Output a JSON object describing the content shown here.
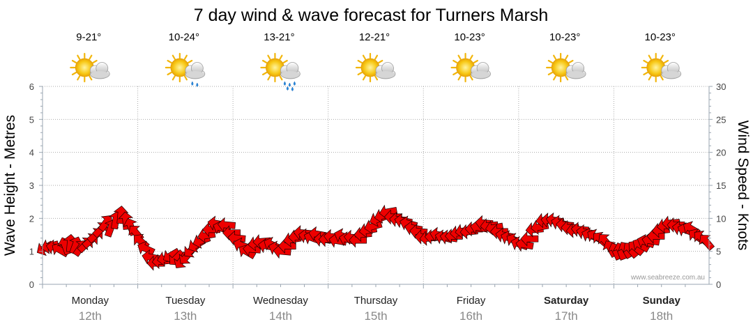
{
  "chart_data": {
    "type": "line",
    "title": "7 day wind & wave forecast for Turners Marsh",
    "ylabel_left": "Wave Height - Metres",
    "ylabel_right": "Wind Speed - Knots",
    "ylim_left": [
      0,
      6
    ],
    "ylim_right": [
      0,
      30
    ],
    "yticks_left": [
      "0",
      "1",
      "2",
      "3",
      "4",
      "5",
      "6"
    ],
    "yticks_right": [
      "0",
      "5",
      "10",
      "15",
      "20",
      "25",
      "30"
    ],
    "grid": true,
    "credit": "www.seabreeze.com.au",
    "series_color": "#ee0000",
    "days": [
      {
        "name": "Monday",
        "date": "12th",
        "temp": "9-21°",
        "weather": "partly-cloudy-icon",
        "bold": false
      },
      {
        "name": "Tuesday",
        "date": "13th",
        "temp": "10-24°",
        "weather": "showers-icon",
        "bold": false
      },
      {
        "name": "Wednesday",
        "date": "14th",
        "temp": "13-21°",
        "weather": "rain-icon",
        "bold": false
      },
      {
        "name": "Thursday",
        "date": "15th",
        "temp": "12-21°",
        "weather": "partly-cloudy-icon",
        "bold": false
      },
      {
        "name": "Friday",
        "date": "16th",
        "temp": "10-23°",
        "weather": "partly-cloudy-icon",
        "bold": false
      },
      {
        "name": "Saturday",
        "date": "17th",
        "temp": "10-23°",
        "weather": "partly-cloudy-icon",
        "bold": true
      },
      {
        "name": "Sunday",
        "date": "18th",
        "temp": "10-23°",
        "weather": "partly-cloudy-icon",
        "bold": true
      }
    ],
    "wind_knots": [
      5.5,
      5.8,
      5.6,
      5.2,
      5.8,
      6.2,
      5.9,
      5.5,
      6.0,
      6.6,
      7.4,
      8.3,
      9.3,
      8.5,
      9.7,
      10.5,
      9.6,
      8.7,
      7.8,
      6.5,
      5.4,
      4.1,
      3.2,
      3.5,
      3.9,
      4.4,
      4.0,
      3.6,
      4.2,
      5.2,
      6.0,
      6.6,
      7.4,
      8.3,
      9.2,
      8.5,
      9.0,
      7.8,
      7.0,
      5.9,
      4.9,
      5.3,
      6.2,
      6.5,
      5.8,
      6.0,
      5.4,
      5.0,
      5.8,
      6.8,
      7.2,
      7.8,
      7.3,
      7.0,
      7.6,
      6.8,
      6.8,
      7.2,
      6.6,
      7.3,
      6.8,
      7.1,
      6.7,
      7.6,
      8.2,
      8.8,
      9.9,
      10.4,
      11.0,
      10.2,
      9.8,
      9.6,
      9.2,
      8.5,
      8.0,
      7.2,
      7.0,
      7.2,
      7.5,
      7.1,
      7.1,
      7.3,
      7.8,
      8.1,
      8.0,
      8.4,
      8.6,
      9.3,
      8.9,
      8.6,
      8.0,
      7.4,
      7.0,
      6.6,
      6.1,
      6.0,
      6.9,
      8.3,
      8.7,
      9.7,
      9.7,
      9.7,
      9.3,
      9.0,
      8.6,
      8.2,
      8.3,
      7.9,
      7.4,
      7.2,
      6.8,
      6.5,
      5.4,
      5.0,
      5.0,
      5.2,
      5.2,
      5.5,
      5.9,
      6.4,
      6.6,
      7.3,
      8.2,
      8.9,
      9.3,
      9.0,
      8.5,
      8.2,
      8.4,
      7.3,
      7.0,
      6.4
    ],
    "wind_dir_deg": [
      60,
      75,
      100,
      120,
      160,
      185,
      200,
      215,
      225,
      230,
      230,
      225,
      215,
      200,
      190,
      185,
      175,
      160,
      140,
      130,
      115,
      100,
      90,
      85,
      80,
      60,
      45,
      35,
      40,
      50,
      60,
      70,
      80,
      90,
      100,
      110,
      95,
      90,
      95,
      110,
      120,
      95,
      80,
      85,
      100,
      115,
      110,
      95,
      90,
      80,
      85,
      95,
      100,
      110,
      100,
      95,
      90,
      95,
      100,
      110,
      105,
      95,
      90,
      85,
      80,
      75,
      70,
      75,
      80,
      90,
      95,
      100,
      105,
      100,
      95,
      90,
      85,
      90,
      100,
      105,
      100,
      90,
      85,
      80,
      85,
      90,
      100,
      95,
      85,
      80,
      90,
      100,
      110,
      120,
      110,
      100,
      90,
      85,
      80,
      85,
      95,
      100,
      105,
      95,
      90,
      85,
      95,
      100,
      110,
      120,
      130,
      140,
      150,
      155,
      160,
      150,
      140,
      130,
      120,
      110,
      100,
      90,
      85,
      80,
      85,
      90,
      100,
      110,
      120,
      125,
      130,
      140
    ]
  }
}
